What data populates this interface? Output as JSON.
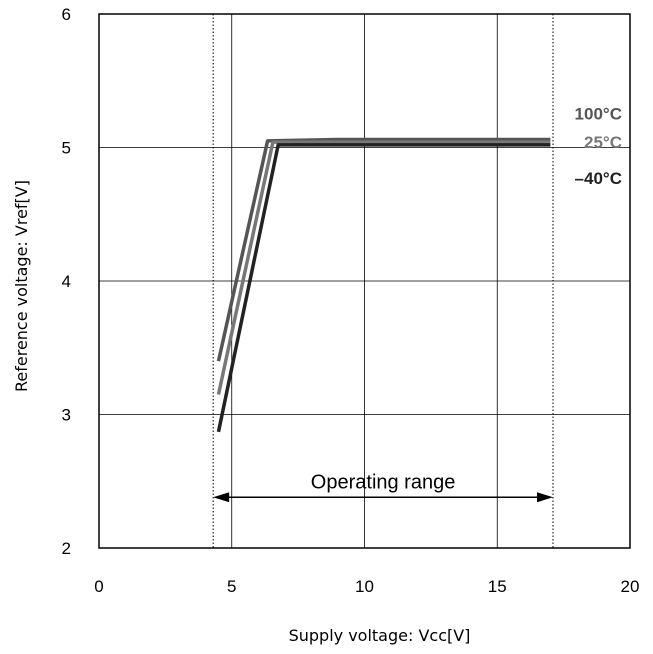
{
  "chart_data": {
    "type": "line",
    "title": "",
    "xlabel": "Supply voltage: Vcc[V]",
    "ylabel": "Reference voltage: Vref[V]",
    "xlim": [
      0,
      20
    ],
    "ylim": [
      2,
      6
    ],
    "xticks": [
      0,
      5,
      10,
      15,
      20
    ],
    "yticks": [
      2,
      3,
      4,
      5,
      6
    ],
    "x_tick_labels": [
      "0",
      "5",
      "10",
      "15",
      "20"
    ],
    "y_tick_labels": [
      "2",
      "3",
      "4",
      "5",
      "6"
    ],
    "grid": true,
    "series": [
      {
        "name": "100°C",
        "color": "#555555",
        "x": [
          4.5,
          6.35,
          9.0,
          17.0
        ],
        "y": [
          3.4,
          5.05,
          5.06,
          5.06
        ]
      },
      {
        "name": "25°C",
        "color": "#777777",
        "x": [
          4.5,
          6.55,
          9.0,
          17.0
        ],
        "y": [
          3.15,
          5.04,
          5.04,
          5.04
        ]
      },
      {
        "name": "–40°C",
        "color": "#222222",
        "x": [
          4.5,
          6.75,
          9.0,
          17.0
        ],
        "y": [
          2.87,
          5.02,
          5.02,
          5.02
        ]
      }
    ],
    "annotations": {
      "operating_range": {
        "label": "Operating range",
        "x_start": 4.3,
        "x_end": 17.1,
        "y": 2.38
      }
    }
  }
}
